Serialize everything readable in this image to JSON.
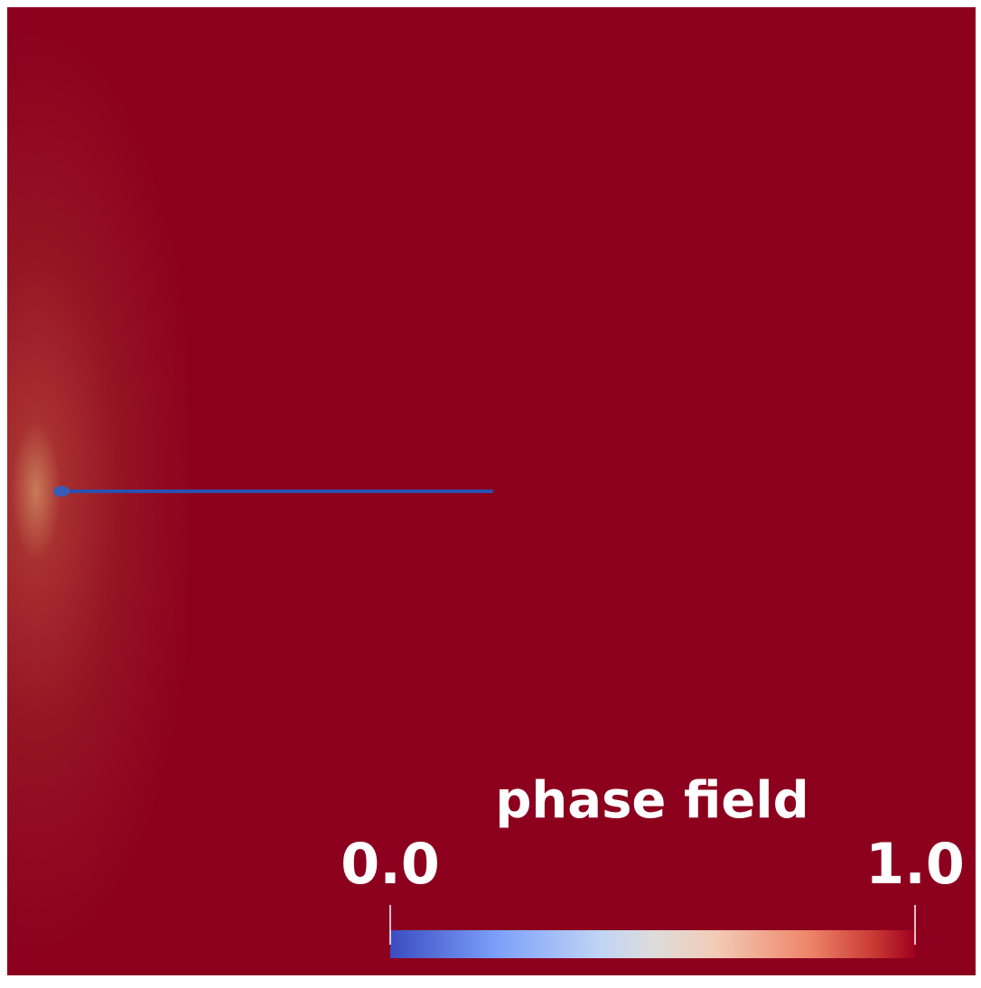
{
  "colorbar": {
    "title": "phase field",
    "ticks": [
      {
        "value": 0,
        "label": "0.0"
      },
      {
        "value": 1,
        "label": "1.0"
      }
    ]
  }
}
